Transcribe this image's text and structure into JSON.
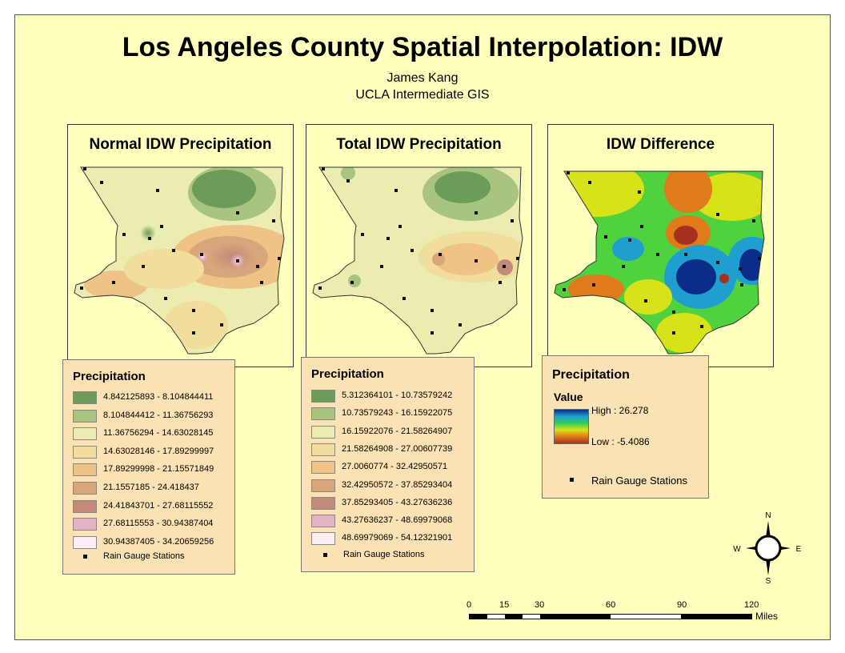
{
  "title": "Los Angeles County Spatial Interpolation: IDW",
  "author": "James Kang",
  "course": "UCLA Intermediate GIS",
  "panels": [
    {
      "title": "Normal IDW Precipitation"
    },
    {
      "title": "Total IDW Precipitation"
    },
    {
      "title": "IDW Difference"
    }
  ],
  "legend_normal": {
    "title": "Precipitation",
    "classes": [
      {
        "label": "4.842125893 - 8.104844411",
        "color": "#6b9c5a"
      },
      {
        "label": "8.104844412 - 11.36756293",
        "color": "#a8c47f"
      },
      {
        "label": "11.36756294 - 14.63028145",
        "color": "#ebedb0"
      },
      {
        "label": "14.63028146 - 17.89299997",
        "color": "#f1dd9c"
      },
      {
        "label": "17.89299998 - 21.15571849",
        "color": "#efc285"
      },
      {
        "label": "21.1557185 - 24.418437",
        "color": "#d9a57a"
      },
      {
        "label": "24.41843701 - 27.68115552",
        "color": "#c18a7b"
      },
      {
        "label": "27.68115553 - 30.94387404",
        "color": "#e2b4c6"
      },
      {
        "label": "30.94387405 - 34.20659256",
        "color": "#fbeef7"
      }
    ],
    "stations_label": "Rain Gauge Stations"
  },
  "legend_total": {
    "title": "Precipitation",
    "classes": [
      {
        "label": "5.312364101 - 10.73579242",
        "color": "#6b9c5a"
      },
      {
        "label": "10.73579243 - 16.15922075",
        "color": "#a8c47f"
      },
      {
        "label": "16.15922076 - 21.58264907",
        "color": "#ebedb0"
      },
      {
        "label": "21.58264908 - 27.00607739",
        "color": "#f1dd9c"
      },
      {
        "label": "27.0060774 - 32.42950571",
        "color": "#efc285"
      },
      {
        "label": "32.42950572 - 37.85293404",
        "color": "#d9a57a"
      },
      {
        "label": "37.85293405 - 43.27636236",
        "color": "#c18a7b"
      },
      {
        "label": "43.27636237 - 48.69979068",
        "color": "#e2b4c6"
      },
      {
        "label": "48.69979069 - 54.12321901",
        "color": "#fbeef7"
      }
    ],
    "stations_label": "Rain Gauge Stations"
  },
  "legend_diff": {
    "title": "Precipitation",
    "value_label": "Value",
    "high_label": "High : 26.278",
    "low_label": "Low : -5.4086",
    "ramp_colors": [
      "#0a2d8a",
      "#1f9fd0",
      "#2fcf5a",
      "#d8e218",
      "#e07a1a",
      "#a8301e"
    ],
    "stations_label": "Rain Gauge Stations"
  },
  "north_arrow": {
    "n": "N",
    "s": "S",
    "e": "E",
    "w": "W"
  },
  "scale_bar": {
    "ticks": [
      "0",
      "15",
      "30",
      "60",
      "90",
      "120"
    ],
    "units": "Miles"
  }
}
